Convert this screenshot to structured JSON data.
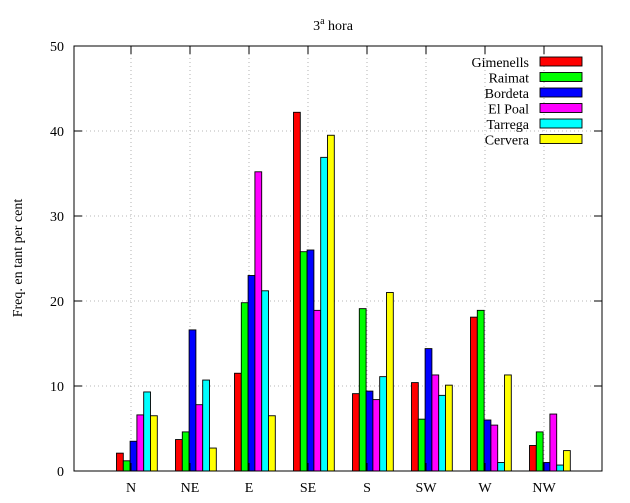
{
  "chart_data": {
    "type": "bar",
    "title": "3",
    "title_superscript": "a",
    "title_suffix": " hora",
    "xlabel": "",
    "ylabel": "Freq. en tant per cent",
    "ylim": [
      0,
      50
    ],
    "yticks": [
      0,
      10,
      20,
      30,
      40,
      50
    ],
    "grid": true,
    "legend_position": "top-right",
    "categories": [
      "N",
      "NE",
      "E",
      "SE",
      "S",
      "SW",
      "W",
      "NW"
    ],
    "series": [
      {
        "name": "Gimenells",
        "color": "#ff0000",
        "values": [
          2.1,
          3.7,
          11.5,
          42.2,
          9.1,
          10.4,
          18.1,
          3.0
        ]
      },
      {
        "name": "Raimat",
        "color": "#00ff00",
        "values": [
          1.2,
          4.6,
          19.8,
          25.8,
          19.1,
          6.1,
          18.9,
          4.6
        ]
      },
      {
        "name": "Bordeta",
        "color": "#0000ff",
        "values": [
          3.5,
          16.6,
          23.0,
          26.0,
          9.4,
          14.4,
          6.0,
          1.0
        ]
      },
      {
        "name": "El Poal",
        "color": "#ff00ff",
        "values": [
          6.6,
          7.8,
          35.2,
          18.9,
          8.4,
          11.3,
          5.4,
          6.7
        ]
      },
      {
        "name": "Tarrega",
        "color": "#00ffff",
        "values": [
          9.3,
          10.7,
          21.2,
          36.9,
          11.1,
          8.9,
          1.0,
          0.7
        ]
      },
      {
        "name": "Cervera",
        "color": "#ffff00",
        "values": [
          6.5,
          2.7,
          6.5,
          39.5,
          21.0,
          10.1,
          11.3,
          2.4
        ]
      }
    ]
  }
}
